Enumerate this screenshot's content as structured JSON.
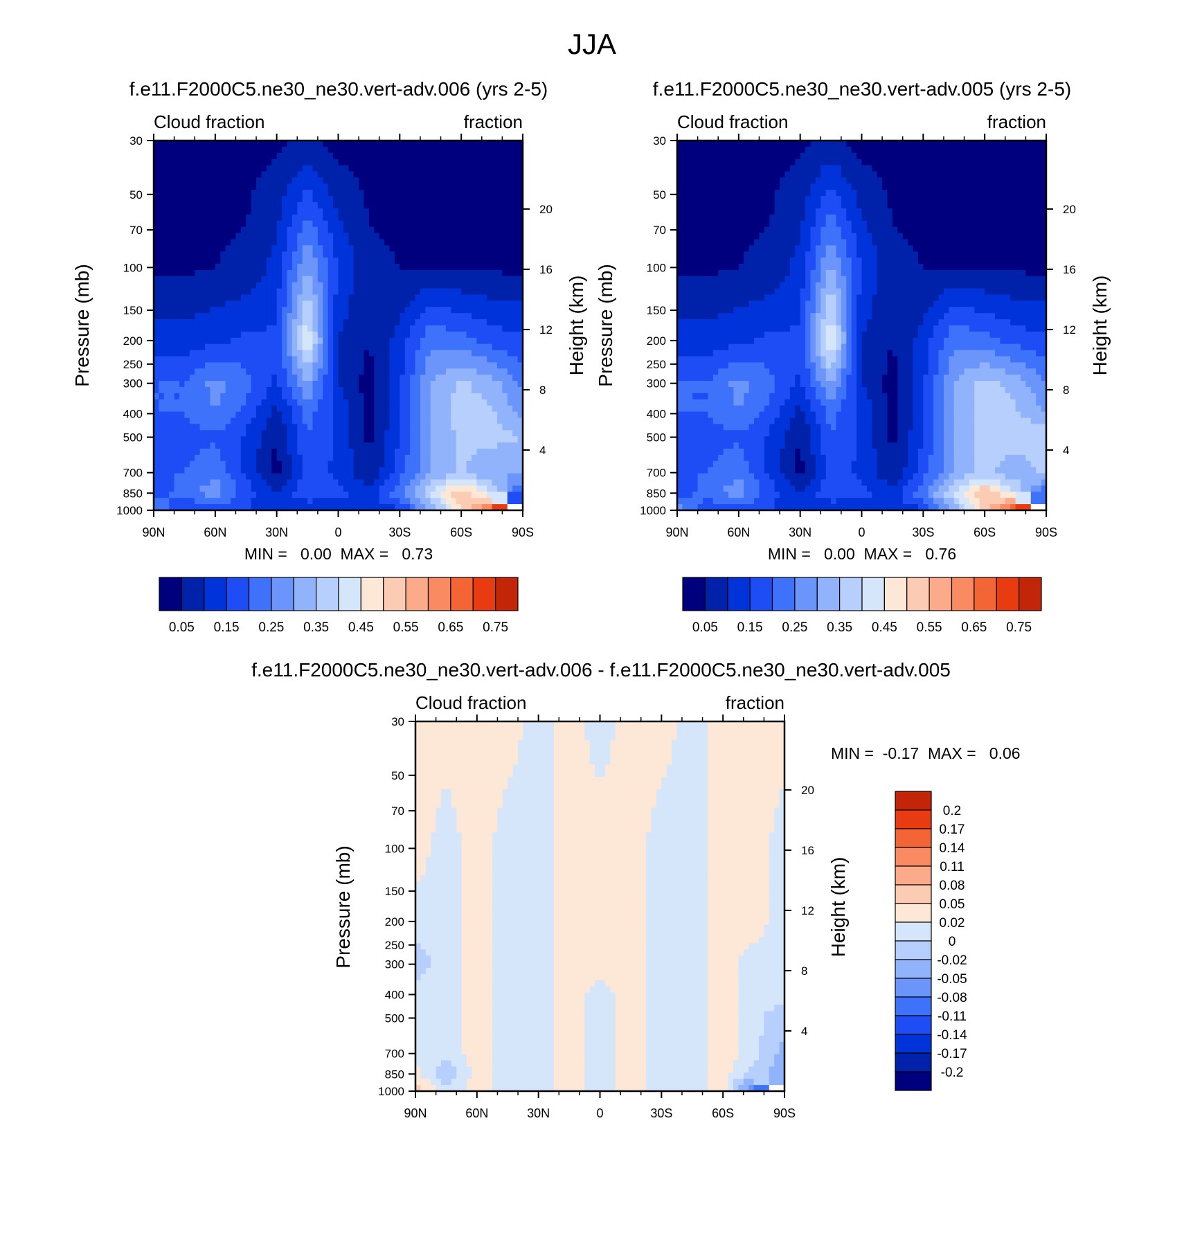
{
  "figure": {
    "title": "JJA"
  },
  "colors": {
    "abs_fills": [
      "#00007f",
      "#0022aa",
      "#0033d9",
      "#1e4cf5",
      "#3f72fa",
      "#6b95fb",
      "#91b3fb",
      "#b7cffc",
      "#d5e6fb",
      "#fde7d6",
      "#fccbb3",
      "#fbab8a",
      "#f98a62",
      "#f46536",
      "#e83b12",
      "#c22507",
      "#8f0c03"
    ],
    "diff_fills": [
      "#00007f",
      "#0022aa",
      "#0033d9",
      "#1e4cf5",
      "#3f72fa",
      "#6b95fb",
      "#91b3fb",
      "#b7cffc",
      "#d5e6fb",
      "#fde7d6",
      "#fccbb3",
      "#fbab8a",
      "#f98a62",
      "#f46536",
      "#e83b12",
      "#c22507",
      "#8f0c03"
    ]
  },
  "panels": [
    {
      "title": "f.e11.F2000C5.ne30_ne30.vert-adv.006 (yrs 2-5)",
      "left_label": "Cloud fraction",
      "right_label": "fraction",
      "stats": "MIN =   0.00  MAX =   0.73",
      "ylabel": "Pressure (mb)",
      "y2label": "Height (km)"
    },
    {
      "title": "f.e11.F2000C5.ne30_ne30.vert-adv.005 (yrs 2-5)",
      "left_label": "Cloud fraction",
      "right_label": "fraction",
      "stats": "MIN =   0.00  MAX =   0.76",
      "ylabel": "Pressure (mb)",
      "y2label": "Height (km)"
    },
    {
      "title": "f.e11.F2000C5.ne30_ne30.vert-adv.006 - f.e11.F2000C5.ne30_ne30.vert-adv.005",
      "left_label": "Cloud fraction",
      "right_label": "fraction",
      "stats": "MIN =  -0.17  MAX =   0.06",
      "ylabel": "Pressure (mb)",
      "y2label": "Height (km)"
    }
  ],
  "axes": {
    "pressure_ticks": [
      "30",
      "50",
      "70",
      "100",
      "150",
      "200",
      "250",
      "300",
      "400",
      "500",
      "700",
      "850",
      "1000"
    ],
    "height_ticks": [
      "20",
      "16",
      "12",
      "8",
      "4"
    ],
    "lat_ticks": [
      "90N",
      "60N",
      "30N",
      "0",
      "30S",
      "60S",
      "90S"
    ]
  },
  "colorbar_abs_labels": [
    "0.05",
    "0.15",
    "0.25",
    "0.35",
    "0.45",
    "0.55",
    "0.65",
    "0.75"
  ],
  "colorbar_diff_labels": [
    "0.2",
    "0.17",
    "0.14",
    "0.11",
    "0.08",
    "0.05",
    "0.02",
    "0",
    "-0.02",
    "-0.05",
    "-0.08",
    "-0.11",
    "-0.14",
    "-0.17",
    "-0.2"
  ],
  "chart_data": [
    {
      "type": "heatmap",
      "title": "f.e11.F2000C5.ne30_ne30.vert-adv.006 (yrs 2-5)",
      "subtitle": "Cloud fraction",
      "units": "fraction",
      "xlabel": "",
      "ylabel": "Pressure (mb)",
      "y2label": "Height (km)",
      "x_ticks": [
        "90N",
        "60N",
        "30N",
        "0",
        "30S",
        "60S",
        "90S"
      ],
      "xlim": [
        90,
        -90
      ],
      "ylim": [
        1000,
        30
      ],
      "y_scale": "log",
      "min": 0.0,
      "max": 0.73,
      "contour_levels": [
        0.0,
        0.05,
        0.1,
        0.15,
        0.2,
        0.25,
        0.3,
        0.35,
        0.4,
        0.45,
        0.5,
        0.55,
        0.6,
        0.65,
        0.7,
        0.75
      ],
      "latitudes": [
        90,
        75,
        60,
        45,
        30,
        15,
        0,
        -15,
        -30,
        -45,
        -60,
        -75,
        -90
      ],
      "pressures": [
        30,
        100,
        200,
        300,
        400,
        500,
        700,
        850,
        1000
      ],
      "values": [
        [
          0.03,
          0.03,
          0.03,
          0.03,
          0.04,
          0.06,
          0.03,
          0.03,
          0.03,
          0.03,
          0.03,
          0.03,
          0.03
        ],
        [
          0.04,
          0.04,
          0.05,
          0.06,
          0.12,
          0.3,
          0.15,
          0.06,
          0.05,
          0.05,
          0.04,
          0.04,
          0.04
        ],
        [
          0.12,
          0.12,
          0.14,
          0.16,
          0.16,
          0.45,
          0.1,
          0.05,
          0.12,
          0.24,
          0.22,
          0.18,
          0.16
        ],
        [
          0.2,
          0.2,
          0.27,
          0.22,
          0.14,
          0.3,
          0.1,
          0.03,
          0.14,
          0.3,
          0.36,
          0.32,
          0.24
        ],
        [
          0.2,
          0.2,
          0.25,
          0.18,
          0.08,
          0.22,
          0.14,
          0.03,
          0.14,
          0.3,
          0.38,
          0.36,
          0.28
        ],
        [
          0.19,
          0.18,
          0.19,
          0.14,
          0.05,
          0.2,
          0.14,
          0.04,
          0.15,
          0.3,
          0.36,
          0.37,
          0.35
        ],
        [
          0.19,
          0.2,
          0.24,
          0.14,
          0.03,
          0.17,
          0.14,
          0.05,
          0.18,
          0.3,
          0.36,
          0.3,
          0.3
        ],
        [
          0.16,
          0.23,
          0.28,
          0.18,
          0.1,
          0.2,
          0.17,
          0.12,
          0.24,
          0.4,
          0.55,
          0.4,
          0.18
        ],
        [
          0.28,
          0.14,
          0.16,
          0.15,
          0.1,
          0.1,
          0.1,
          0.12,
          0.14,
          0.3,
          0.5,
          0.7,
          null
        ]
      ]
    },
    {
      "type": "heatmap",
      "title": "f.e11.F2000C5.ne30_ne30.vert-adv.005 (yrs 2-5)",
      "subtitle": "Cloud fraction",
      "units": "fraction",
      "xlabel": "",
      "ylabel": "Pressure (mb)",
      "y2label": "Height (km)",
      "x_ticks": [
        "90N",
        "60N",
        "30N",
        "0",
        "30S",
        "60S",
        "90S"
      ],
      "xlim": [
        90,
        -90
      ],
      "ylim": [
        1000,
        30
      ],
      "y_scale": "log",
      "min": 0.0,
      "max": 0.76,
      "contour_levels": [
        0.0,
        0.05,
        0.1,
        0.15,
        0.2,
        0.25,
        0.3,
        0.35,
        0.4,
        0.45,
        0.5,
        0.55,
        0.6,
        0.65,
        0.7,
        0.75
      ],
      "latitudes": [
        90,
        75,
        60,
        45,
        30,
        15,
        0,
        -15,
        -30,
        -45,
        -60,
        -75,
        -90
      ],
      "pressures": [
        30,
        100,
        200,
        300,
        400,
        500,
        700,
        850,
        1000
      ],
      "values": [
        [
          0.03,
          0.03,
          0.03,
          0.03,
          0.04,
          0.06,
          0.03,
          0.03,
          0.03,
          0.03,
          0.03,
          0.03,
          0.03
        ],
        [
          0.04,
          0.04,
          0.05,
          0.06,
          0.12,
          0.31,
          0.15,
          0.06,
          0.05,
          0.05,
          0.04,
          0.04,
          0.04
        ],
        [
          0.12,
          0.12,
          0.14,
          0.16,
          0.16,
          0.46,
          0.1,
          0.05,
          0.12,
          0.24,
          0.22,
          0.18,
          0.16
        ],
        [
          0.2,
          0.2,
          0.27,
          0.22,
          0.14,
          0.31,
          0.1,
          0.03,
          0.14,
          0.3,
          0.37,
          0.33,
          0.25
        ],
        [
          0.2,
          0.2,
          0.25,
          0.18,
          0.08,
          0.22,
          0.14,
          0.03,
          0.14,
          0.3,
          0.38,
          0.36,
          0.3
        ],
        [
          0.19,
          0.18,
          0.19,
          0.14,
          0.05,
          0.2,
          0.14,
          0.04,
          0.15,
          0.3,
          0.37,
          0.38,
          0.4
        ],
        [
          0.19,
          0.2,
          0.24,
          0.14,
          0.03,
          0.17,
          0.14,
          0.05,
          0.18,
          0.3,
          0.37,
          0.31,
          0.36
        ],
        [
          0.16,
          0.23,
          0.28,
          0.18,
          0.1,
          0.2,
          0.17,
          0.12,
          0.24,
          0.41,
          0.55,
          0.41,
          0.2
        ],
        [
          0.3,
          0.15,
          0.16,
          0.15,
          0.1,
          0.1,
          0.1,
          0.12,
          0.14,
          0.31,
          0.52,
          0.73,
          null
        ]
      ]
    },
    {
      "type": "heatmap",
      "title": "f.e11.F2000C5.ne30_ne30.vert-adv.006 - f.e11.F2000C5.ne30_ne30.vert-adv.005",
      "subtitle": "Cloud fraction",
      "units": "fraction",
      "xlabel": "",
      "ylabel": "Pressure (mb)",
      "y2label": "Height (km)",
      "x_ticks": [
        "90N",
        "60N",
        "30N",
        "0",
        "30S",
        "60S",
        "90S"
      ],
      "xlim": [
        90,
        -90
      ],
      "ylim": [
        1000,
        30
      ],
      "y_scale": "log",
      "min": -0.17,
      "max": 0.06,
      "contour_levels": [
        -0.2,
        -0.17,
        -0.14,
        -0.11,
        -0.08,
        -0.05,
        -0.02,
        0,
        0.02,
        0.05,
        0.08,
        0.11,
        0.14,
        0.17,
        0.2
      ],
      "latitudes": [
        90,
        75,
        60,
        45,
        30,
        15,
        0,
        -15,
        -30,
        -45,
        -60,
        -75,
        -90
      ],
      "pressures": [
        30,
        100,
        200,
        300,
        400,
        500,
        700,
        850,
        1000
      ],
      "values": [
        [
          0.01,
          0.01,
          0.01,
          0.01,
          -0.01,
          0.01,
          -0.01,
          0.01,
          0.01,
          -0.01,
          0.01,
          0.01,
          0.01
        ],
        [
          0.01,
          -0.01,
          0.01,
          -0.01,
          -0.01,
          0.01,
          0.01,
          0.01,
          -0.01,
          -0.01,
          0.01,
          0.01,
          -0.01
        ],
        [
          -0.01,
          -0.01,
          0.01,
          -0.01,
          -0.01,
          0.01,
          0.01,
          0.01,
          -0.01,
          -0.01,
          0.01,
          0.01,
          -0.01
        ],
        [
          -0.03,
          -0.01,
          0.01,
          -0.01,
          -0.01,
          0.01,
          0.01,
          0.01,
          -0.01,
          -0.01,
          0.01,
          -0.01,
          -0.01
        ],
        [
          -0.01,
          -0.01,
          0.01,
          -0.01,
          -0.01,
          0.01,
          -0.01,
          0.01,
          -0.01,
          -0.01,
          0.01,
          -0.01,
          -0.01
        ],
        [
          -0.01,
          -0.01,
          0.01,
          -0.01,
          -0.01,
          0.01,
          -0.01,
          0.01,
          -0.01,
          -0.01,
          0.01,
          -0.01,
          -0.04
        ],
        [
          -0.01,
          -0.01,
          0.01,
          -0.01,
          -0.01,
          0.01,
          -0.01,
          0.01,
          -0.01,
          -0.01,
          0.01,
          -0.01,
          -0.06
        ],
        [
          0.01,
          -0.04,
          0.01,
          -0.01,
          -0.01,
          0.01,
          -0.01,
          0.01,
          -0.01,
          -0.01,
          0.01,
          -0.03,
          -0.08
        ],
        [
          0.03,
          -0.01,
          0.01,
          -0.01,
          -0.01,
          0.01,
          -0.01,
          0.01,
          -0.01,
          -0.01,
          0.01,
          -0.12,
          null
        ]
      ]
    }
  ]
}
